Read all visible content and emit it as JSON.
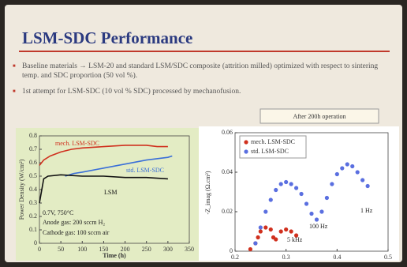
{
  "slide": {
    "title": "LSM-SDC Performance",
    "bullets": [
      "Baseline materials → LSM-20 and standard LSM/SDC composite (attrition milled) optimized with respect to sintering temp. and SDC proportion (50 vol %).",
      "1st attempt for LSM-SDC (10 vol % SDC) processed by mechanofusion."
    ]
  },
  "chart_data": [
    {
      "type": "line",
      "x_label": "Time (h)",
      "y_label": "Power Density (W/cm²)",
      "xlim": [
        0,
        350
      ],
      "xticks": [
        0,
        50,
        100,
        150,
        200,
        250,
        300,
        350
      ],
      "ylim": [
        0,
        0.8
      ],
      "yticks": [
        0,
        0.1,
        0.2,
        0.3,
        0.4,
        0.5,
        0.6,
        0.7,
        0.8
      ],
      "annotations": [
        "0.7V, 750°C",
        "Anode gas: 200 sccm H₂",
        "Cathode gas: 100 sccm air"
      ],
      "series": [
        {
          "name": "mech. LSM-SDC",
          "color": "#d0301e",
          "x": [
            0,
            10,
            25,
            50,
            75,
            100,
            150,
            200,
            250,
            275,
            300
          ],
          "values": [
            0.58,
            0.62,
            0.65,
            0.68,
            0.7,
            0.71,
            0.72,
            0.73,
            0.73,
            0.72,
            0.72
          ]
        },
        {
          "name": "std. LSM-SDC",
          "color": "#3a6fd8",
          "x": [
            60,
            80,
            100,
            150,
            200,
            250,
            300,
            310
          ],
          "values": [
            0.5,
            0.52,
            0.53,
            0.56,
            0.59,
            0.62,
            0.64,
            0.65
          ]
        },
        {
          "name": "LSM",
          "color": "#111111",
          "x": [
            0,
            10,
            20,
            50,
            100,
            150,
            200,
            250,
            300
          ],
          "values": [
            0.3,
            0.48,
            0.5,
            0.51,
            0.5,
            0.5,
            0.49,
            0.49,
            0.48
          ]
        }
      ]
    },
    {
      "type": "scatter",
      "title": "After 200h operation",
      "y_label": "-Z_imag (Ω.cm²)",
      "xlim": [
        0.2,
        0.5
      ],
      "xticks": [
        0.2,
        0.3,
        0.4,
        0.5
      ],
      "ylim": [
        0,
        0.06
      ],
      "yticks": [
        0,
        0.02,
        0.04,
        0.06
      ],
      "annotations": [
        "5 kHz",
        "100 Hz",
        "1 Hz"
      ],
      "series": [
        {
          "name": "mech. LSM-SDC",
          "color": "#d0301e",
          "x": [
            0.23,
            0.24,
            0.245,
            0.25,
            0.26,
            0.27,
            0.275,
            0.28,
            0.29,
            0.3,
            0.31,
            0.32
          ],
          "values": [
            0.001,
            0.004,
            0.007,
            0.01,
            0.012,
            0.011,
            0.007,
            0.006,
            0.01,
            0.011,
            0.01,
            0.008
          ]
        },
        {
          "name": "std. LSM-SDC",
          "color": "#5a6fe0",
          "x": [
            0.24,
            0.25,
            0.26,
            0.27,
            0.28,
            0.29,
            0.3,
            0.31,
            0.32,
            0.33,
            0.34,
            0.35,
            0.36,
            0.37,
            0.38,
            0.39,
            0.4,
            0.41,
            0.42,
            0.43,
            0.44,
            0.45,
            0.46
          ],
          "values": [
            0.004,
            0.012,
            0.02,
            0.026,
            0.031,
            0.034,
            0.035,
            0.034,
            0.032,
            0.029,
            0.024,
            0.019,
            0.016,
            0.02,
            0.027,
            0.034,
            0.039,
            0.042,
            0.044,
            0.043,
            0.04,
            0.036,
            0.033
          ]
        }
      ]
    }
  ]
}
